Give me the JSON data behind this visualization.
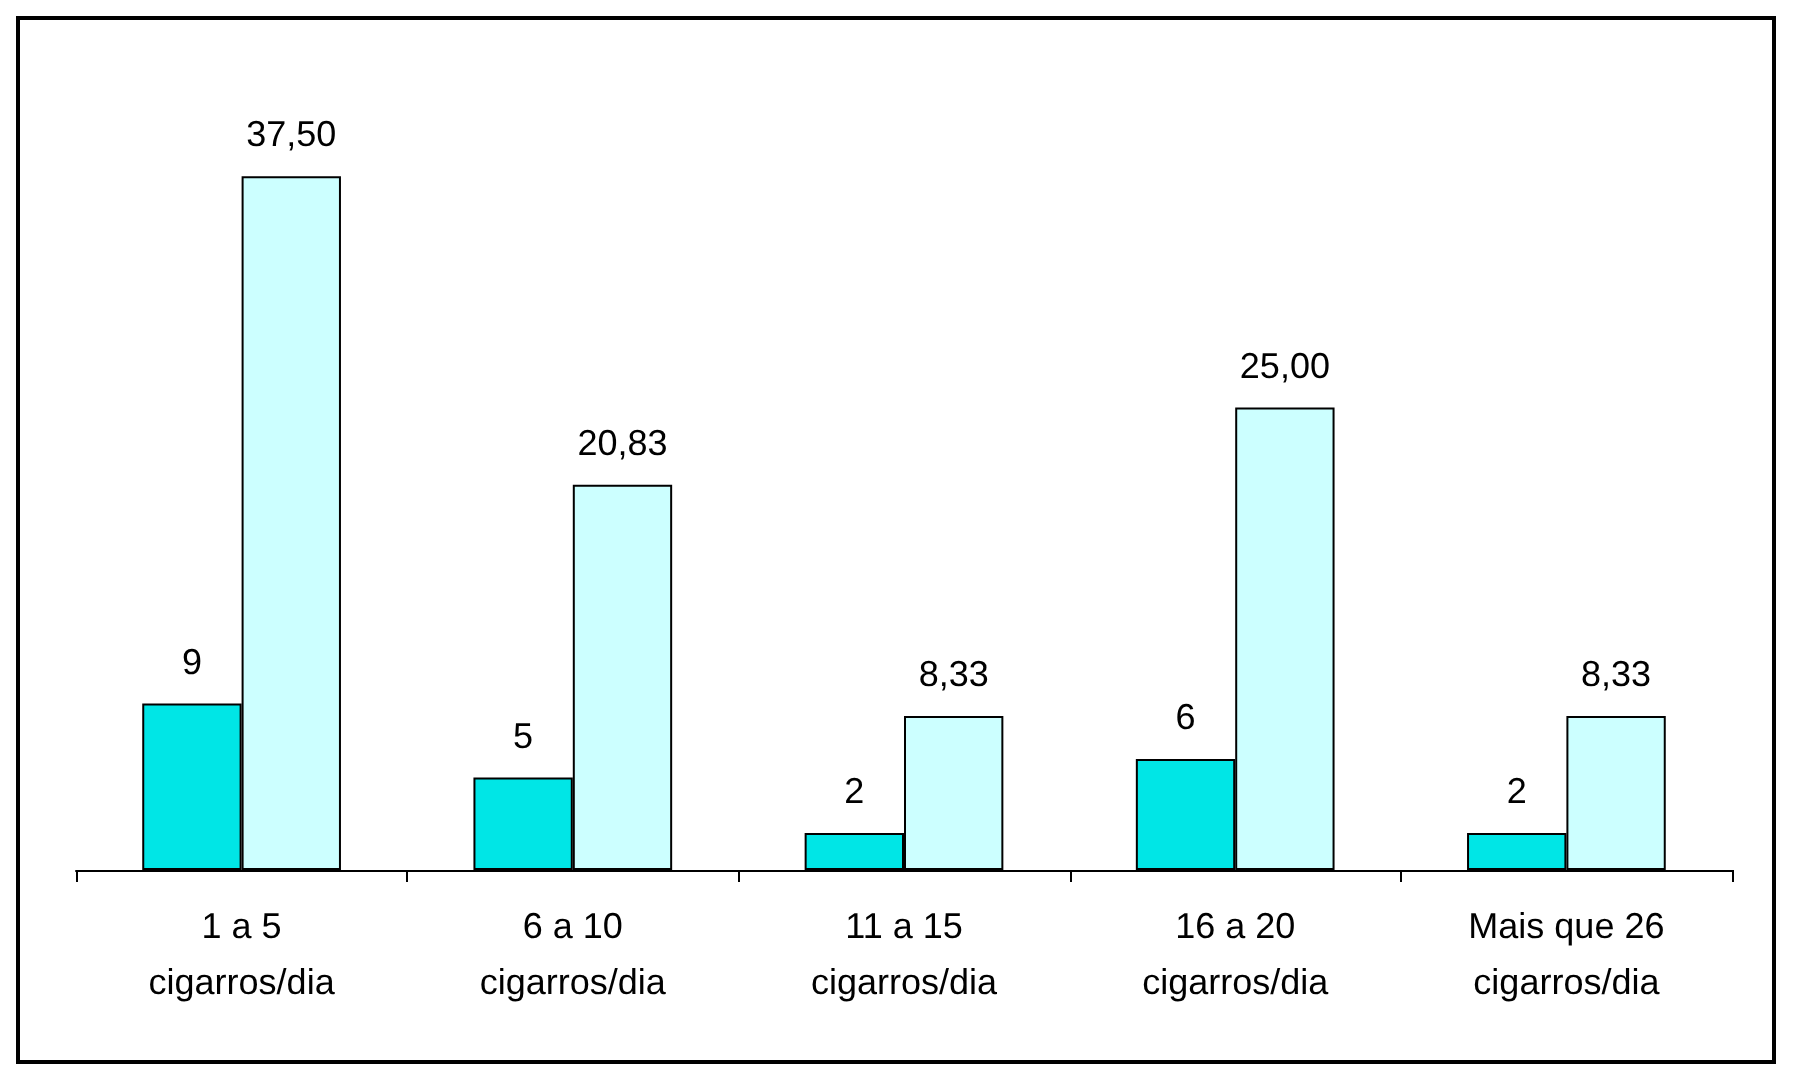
{
  "chart_data": {
    "type": "bar",
    "categories": [
      "1 a 5\ncigarros/dia",
      "6 a 10\ncigarros/dia",
      "11 a 15\ncigarros/dia",
      "16 a 20\ncigarros/dia",
      "Mais que 26\ncigarros/dia"
    ],
    "series": [
      {
        "color": "#00e6e6",
        "values": [
          9,
          5,
          2,
          6,
          2
        ],
        "value_labels": [
          "9",
          "5",
          "2",
          "6",
          "2"
        ]
      },
      {
        "color": "#ccffff",
        "values": [
          37.5,
          20.83,
          8.33,
          25,
          8.33
        ],
        "value_labels": [
          "37,50",
          "20,83",
          "8,33",
          "25,00",
          "8,33"
        ]
      }
    ]
  }
}
